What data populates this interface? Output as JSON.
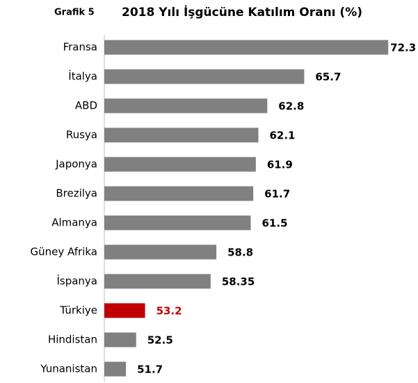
{
  "chart_data": {
    "type": "bar",
    "orientation": "horizontal",
    "label": "Grafik 5",
    "title": "2018 Yılı İşgücüne Katılım Oranı (%)",
    "categories": [
      "Fransa",
      "İtalya",
      "ABD",
      "Rusya",
      "Japonya",
      "Brezilya",
      "Almanya",
      "Güney Afrika",
      "İspanya",
      "Türkiye",
      "Hindistan",
      "Yunanistan"
    ],
    "values": [
      72.3,
      65.7,
      62.8,
      62.1,
      61.9,
      61.7,
      61.5,
      58.8,
      58.35,
      53.2,
      52.5,
      51.7
    ],
    "colors": [
      "#808080",
      "#808080",
      "#808080",
      "#808080",
      "#808080",
      "#808080",
      "#808080",
      "#808080",
      "#808080",
      "#c00000",
      "#808080",
      "#808080"
    ],
    "value_label_colors": [
      "#000000",
      "#000000",
      "#000000",
      "#000000",
      "#000000",
      "#000000",
      "#000000",
      "#000000",
      "#000000",
      "#c00000",
      "#000000",
      "#000000"
    ],
    "xlim": [
      50,
      73
    ]
  }
}
